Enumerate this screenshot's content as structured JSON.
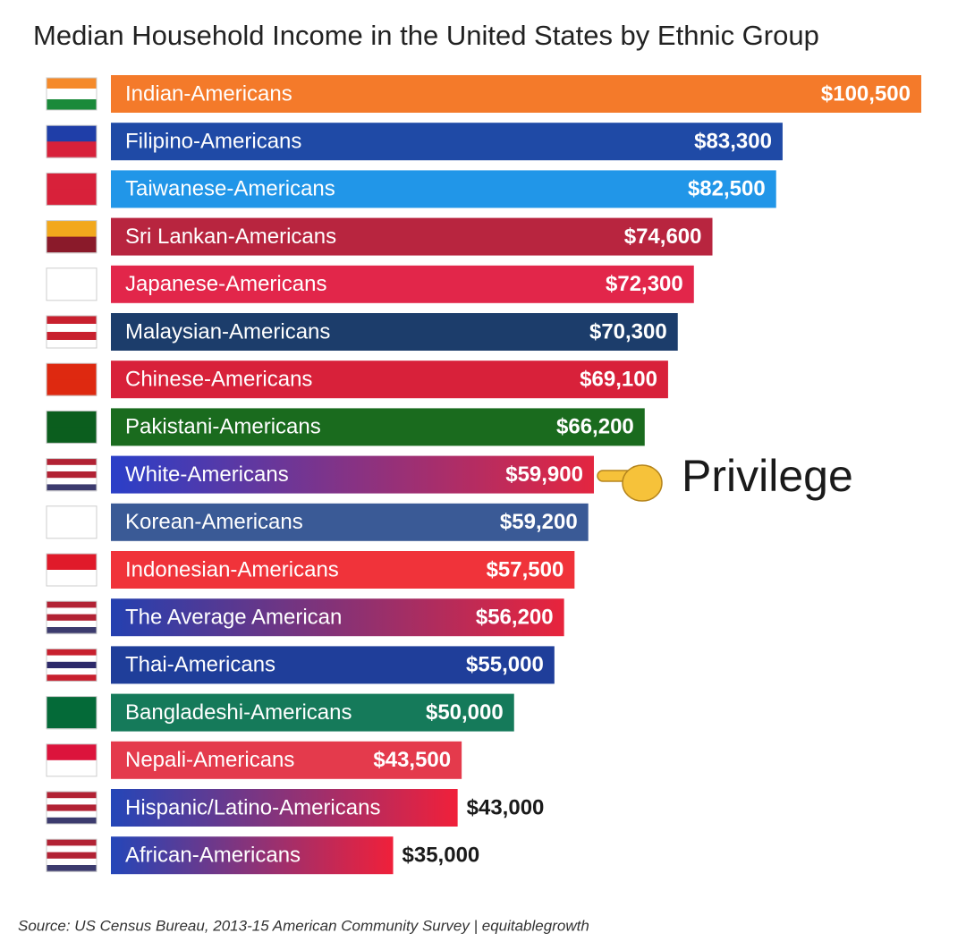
{
  "chart_data": {
    "type": "bar",
    "orientation": "horizontal",
    "title": "Median Household Income in the United States  by Ethnic Group",
    "categories": [
      "Indian-Americans",
      "Filipino-Americans",
      "Taiwanese-Americans",
      "Sri Lankan-Americans",
      "Japanese-Americans",
      "Malaysian-Americans",
      "Chinese-Americans",
      "Pakistani-Americans",
      "White-Americans",
      "Korean-Americans",
      "Indonesian-Americans",
      "The Average American",
      "Thai-Americans",
      "Bangladeshi-Americans",
      "Nepali-Americans",
      "Hispanic/Latino-Americans",
      "African-Americans"
    ],
    "values": [
      100500,
      83300,
      82500,
      74600,
      72300,
      70300,
      69100,
      66200,
      59900,
      59200,
      57500,
      56200,
      55000,
      50000,
      43500,
      43000,
      35000
    ],
    "value_labels": [
      "$100,500",
      "$83,300",
      "$82,500",
      "$74,600",
      "$72,300",
      "$70,300",
      "$69,100",
      "$66,200",
      "$59,900",
      "$59,200",
      "$57,500",
      "$56,200",
      "$55,000",
      "$50,000",
      "$43,500",
      "$43,000",
      "$35,000"
    ],
    "colors": [
      "#f47a2a",
      "#1f4aa6",
      "#2196e8",
      "#b8253f",
      "#e2264a",
      "#1c3d6b",
      "#d8213a",
      "#1a6b1e",
      [
        "#2a3fc8",
        "#e32640"
      ],
      "#3a5a96",
      "#f0333a",
      [
        "#2440b0",
        "#e8243c"
      ],
      "#1f3e9a",
      "#157a5a",
      "#e43a4c",
      [
        "#2446b8",
        "#f0203a"
      ],
      [
        "#2446b8",
        "#f0203a"
      ]
    ],
    "annotation": "Privilege",
    "source": "Source: US Census Bureau, 2013-15 American Community Survey | equitablegrowth"
  }
}
